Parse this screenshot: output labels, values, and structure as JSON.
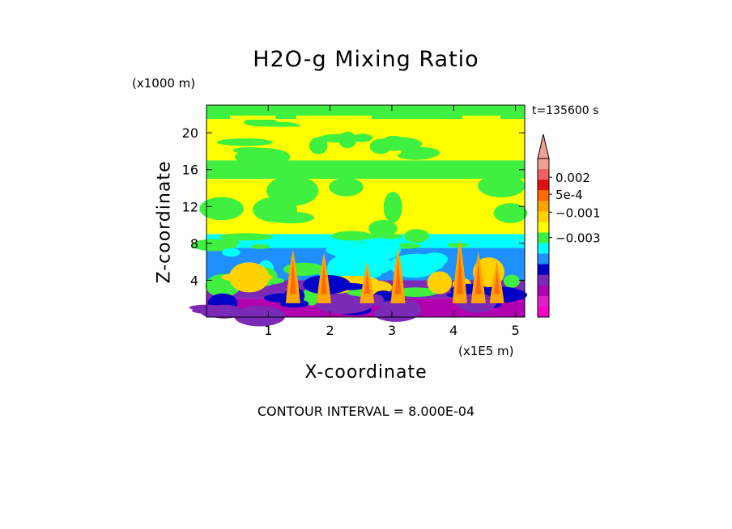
{
  "chart_data": {
    "type": "heatmap",
    "title": "H2O-g Mixing Ratio",
    "xlabel": "X-coordinate",
    "ylabel": "Z-coordinate",
    "x_unit": "(x1E5 m)",
    "y_unit": "(x1000 m)",
    "time_label": "t=135600 s",
    "contour_interval_label": "CONTOUR INTERVAL = 8.000E-04",
    "xlim": [
      0,
      5.15
    ],
    "ylim": [
      0,
      23
    ],
    "x_ticks": [
      "1",
      "2",
      "3",
      "4",
      "5"
    ],
    "x_tick_values": [
      1,
      2,
      3,
      4,
      5
    ],
    "y_ticks": [
      "4",
      "8",
      "12",
      "16",
      "20"
    ],
    "y_tick_values": [
      4,
      8,
      12,
      16,
      20
    ],
    "colorbar": {
      "levels_top_to_bottom": [
        "#f0a090",
        "#f06060",
        "#e01010",
        "#ff6a00",
        "#ffa500",
        "#ffd200",
        "#ffff00",
        "#40f040",
        "#00ffff",
        "#1e90ff",
        "#0000c8",
        "#7b2ab8",
        "#b000b0",
        "#e020c8",
        "#ff00c8"
      ],
      "labels": [
        {
          "text": "0.002",
          "value": 0.002
        },
        {
          "text": "5e-4",
          "value": 0.0005
        },
        {
          "text": "−0.001",
          "value": -0.001
        },
        {
          "text": "−0.003",
          "value": -0.003
        }
      ]
    },
    "bands": [
      {
        "z_range": [
          21.5,
          23
        ],
        "dominant": "#40f040"
      },
      {
        "z_range": [
          17,
          21.5
        ],
        "dominant": "#ffff00"
      },
      {
        "z_range": [
          15,
          17
        ],
        "dominant": "#40f040"
      },
      {
        "z_range": [
          9,
          15
        ],
        "dominant": "#ffff00"
      },
      {
        "z_range": [
          7.5,
          9
        ],
        "dominant": "#00ffff"
      },
      {
        "z_range": [
          4,
          7.5
        ],
        "dominant": "#1e90ff"
      },
      {
        "z_range": [
          2,
          4
        ],
        "dominant": "#7b2ab8"
      },
      {
        "z_range": [
          0,
          2
        ],
        "dominant": "#b000b0"
      }
    ],
    "plumes_x": [
      1.4,
      1.9,
      2.6,
      3.1,
      4.1,
      4.4,
      4.7
    ]
  }
}
